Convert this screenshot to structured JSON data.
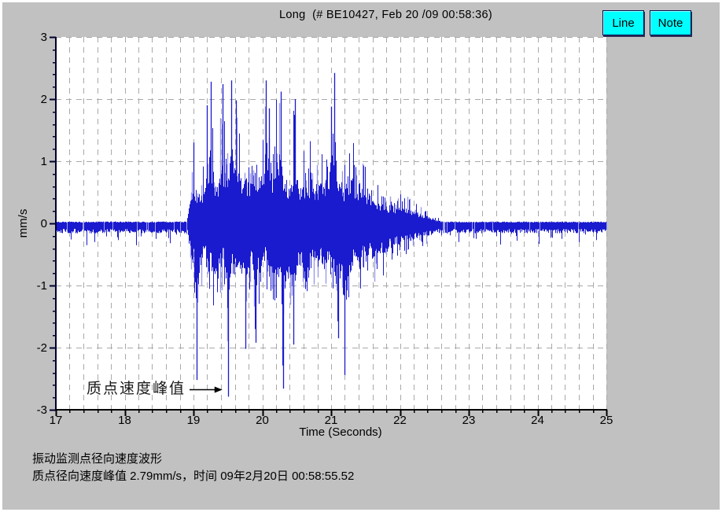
{
  "header": {
    "title": "Long  (# BE10427, Feb 20 /09 00:58:36)"
  },
  "buttons": [
    {
      "label": "Line"
    },
    {
      "label": "Note"
    }
  ],
  "footer": {
    "line1": "振动监测点径向速度波形",
    "line2": "质点径向速度峰值 2.79mm/s，时间 09年2月20日 00:58:55.52"
  },
  "colors": {
    "window_bg": "#c1c1c1",
    "plot_bg": "#ffffff",
    "grid": "#a9a9a9",
    "axis_x": "#000000",
    "axis_y": "#00002e",
    "button_bg": "#00ffff",
    "wave_dark": "#1a1ace",
    "wave_light": "#9b9bea"
  },
  "chart_data": {
    "type": "line",
    "title": "Long (# BE10427, Feb 20 /09 00:58:36)",
    "xlabel": "Time (Seconds)",
    "ylabel": "mm/s",
    "xlim": [
      17,
      25
    ],
    "ylim": [
      -3,
      3
    ],
    "x_ticks": [
      17,
      18,
      19,
      20,
      21,
      22,
      23,
      24,
      25
    ],
    "y_ticks": [
      3,
      2,
      1,
      0,
      -1,
      -2,
      -3
    ],
    "minor_step": 0.2,
    "grid": "dashed, vertical every 0.2 s, horizontal every 1 mm/s",
    "legend": "none",
    "annotation": {
      "text": "质点速度峰值",
      "points_to_time": 19.5,
      "points_to_value": -2.79
    },
    "peak": {
      "value": "2.79",
      "unit": "mm/s",
      "time": "09年2月20日 00:58:55.52"
    },
    "waveform": {
      "seed": 7,
      "noise_band": {
        "hi": 0.03,
        "lo": -0.16
      },
      "noise_segments": [
        [
          17.0,
          18.93
        ],
        [
          22.6,
          25.0
        ]
      ],
      "noise_spikes": [
        [
          17.22,
          -0.26
        ],
        [
          17.45,
          -0.35
        ],
        [
          17.56,
          -0.3
        ],
        [
          17.9,
          -0.27
        ],
        [
          18.17,
          -0.35
        ],
        [
          18.45,
          -0.25
        ],
        [
          18.66,
          -0.32
        ],
        [
          22.85,
          -0.3
        ],
        [
          23.1,
          -0.25
        ],
        [
          23.46,
          -0.34
        ],
        [
          23.7,
          -0.28
        ],
        [
          24.02,
          -0.33
        ],
        [
          24.35,
          -0.25
        ],
        [
          24.6,
          -0.3
        ],
        [
          24.85,
          -0.27
        ]
      ],
      "envelope": [
        [
          18.9,
          -0.18,
          0.06
        ],
        [
          18.95,
          -0.75,
          0.7
        ],
        [
          19.0,
          -1.15,
          1.3
        ],
        [
          19.05,
          -2.5,
          0.9
        ],
        [
          19.1,
          -1.3,
          0.95
        ],
        [
          19.15,
          -0.95,
          1.1
        ],
        [
          19.2,
          -1.15,
          1.9
        ],
        [
          19.25,
          -1.0,
          2.25
        ],
        [
          19.3,
          -1.5,
          1.4
        ],
        [
          19.35,
          -1.6,
          1.1
        ],
        [
          19.4,
          -1.2,
          2.2
        ],
        [
          19.45,
          -1.0,
          1.6
        ],
        [
          19.5,
          -2.75,
          1.3
        ],
        [
          19.55,
          -1.2,
          2.28
        ],
        [
          19.6,
          -1.5,
          1.95
        ],
        [
          19.65,
          -1.3,
          2.0
        ],
        [
          19.7,
          -1.4,
          1.2
        ],
        [
          19.75,
          -2.0,
          1.5
        ],
        [
          19.8,
          -1.3,
          1.0
        ],
        [
          19.85,
          -1.2,
          1.6
        ],
        [
          19.9,
          -1.9,
          1.3
        ],
        [
          19.95,
          -1.4,
          1.1
        ],
        [
          20.0,
          -1.2,
          1.7
        ],
        [
          20.05,
          -1.0,
          2.28
        ],
        [
          20.1,
          -1.6,
          1.85
        ],
        [
          20.15,
          -1.3,
          1.3
        ],
        [
          20.2,
          -1.4,
          2.0
        ],
        [
          20.25,
          -1.8,
          2.1
        ],
        [
          20.3,
          -2.65,
          1.6
        ],
        [
          20.35,
          -1.5,
          1.3
        ],
        [
          20.4,
          -1.6,
          1.1
        ],
        [
          20.45,
          -1.95,
          2.0
        ],
        [
          20.5,
          -1.4,
          1.5
        ],
        [
          20.55,
          -1.2,
          1.1
        ],
        [
          20.6,
          -1.5,
          1.3
        ],
        [
          20.65,
          -1.9,
          1.0
        ],
        [
          20.7,
          -1.2,
          1.4
        ],
        [
          20.75,
          -1.0,
          1.2
        ],
        [
          20.8,
          -1.4,
          1.0
        ],
        [
          20.85,
          -1.1,
          1.5
        ],
        [
          20.9,
          -1.3,
          1.2
        ],
        [
          20.95,
          -1.0,
          1.6
        ],
        [
          21.0,
          -1.2,
          1.9
        ],
        [
          21.05,
          -1.5,
          2.4
        ],
        [
          21.1,
          -1.8,
          1.5
        ],
        [
          21.15,
          -1.3,
          1.2
        ],
        [
          21.2,
          -2.4,
          1.0
        ],
        [
          21.25,
          -1.5,
          1.3
        ],
        [
          21.3,
          -1.2,
          1.5
        ],
        [
          21.35,
          -1.0,
          1.1
        ],
        [
          21.4,
          -1.3,
          0.9
        ],
        [
          21.45,
          -0.9,
          1.2
        ],
        [
          21.5,
          -1.1,
          1.0
        ],
        [
          21.55,
          -0.8,
          0.9
        ],
        [
          21.6,
          -1.0,
          0.8
        ],
        [
          21.7,
          -0.9,
          0.65
        ],
        [
          21.8,
          -0.8,
          0.55
        ],
        [
          21.9,
          -0.6,
          0.5
        ],
        [
          22.0,
          -0.6,
          0.5
        ],
        [
          22.1,
          -0.5,
          0.45
        ],
        [
          22.2,
          -0.45,
          0.35
        ],
        [
          22.3,
          -0.4,
          0.28
        ],
        [
          22.4,
          -0.35,
          0.22
        ],
        [
          22.5,
          -0.28,
          0.12
        ],
        [
          22.62,
          -0.18,
          0.05
        ]
      ],
      "pinned_peaks": [
        [
          19.0,
          1.3
        ],
        [
          19.05,
          -2.52
        ],
        [
          19.2,
          1.9
        ],
        [
          19.25,
          2.28
        ],
        [
          19.42,
          2.24
        ],
        [
          19.5,
          -2.79
        ],
        [
          19.55,
          2.3
        ],
        [
          19.62,
          1.98
        ],
        [
          19.75,
          -2.02
        ],
        [
          19.9,
          -1.92
        ],
        [
          20.05,
          2.3
        ],
        [
          20.1,
          1.85
        ],
        [
          20.27,
          2.12
        ],
        [
          20.3,
          -2.66
        ],
        [
          20.45,
          -1.95
        ],
        [
          20.47,
          2.0
        ],
        [
          21.0,
          1.88
        ],
        [
          21.05,
          2.42
        ],
        [
          21.1,
          -1.85
        ],
        [
          21.2,
          -2.44
        ]
      ]
    }
  }
}
